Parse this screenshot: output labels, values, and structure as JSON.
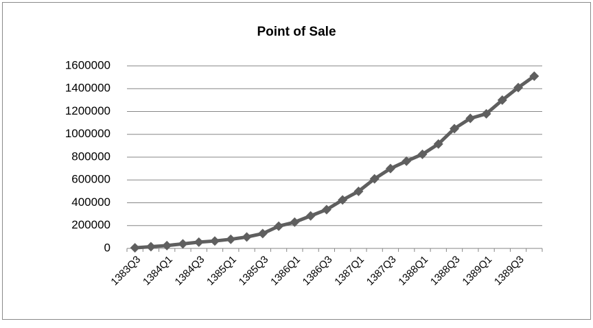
{
  "chart_data": {
    "type": "line",
    "title": "Point of Sale",
    "categories": [
      "1383Q3",
      null,
      "1384Q1",
      null,
      "1384Q3",
      null,
      "1385Q1",
      null,
      "1385Q3",
      null,
      "1386Q1",
      null,
      "1386Q3",
      null,
      "1387Q1",
      null,
      "1387Q3",
      null,
      "1388Q1",
      null,
      "1388Q3",
      null,
      "1389Q1",
      null,
      "1389Q3",
      null
    ],
    "series": [
      {
        "name": "Point of Sale",
        "color": "#5f5f5f",
        "values": [
          5000,
          15000,
          25000,
          40000,
          55000,
          65000,
          80000,
          100000,
          130000,
          195000,
          230000,
          285000,
          340000,
          425000,
          500000,
          610000,
          700000,
          765000,
          825000,
          915000,
          1050000,
          1140000,
          1180000,
          1300000,
          1410000,
          1510000
        ]
      }
    ],
    "ylim": [
      0,
      1600000
    ],
    "yticks": [
      0,
      200000,
      400000,
      600000,
      800000,
      1000000,
      1200000,
      1400000,
      1600000
    ],
    "grid": true
  }
}
